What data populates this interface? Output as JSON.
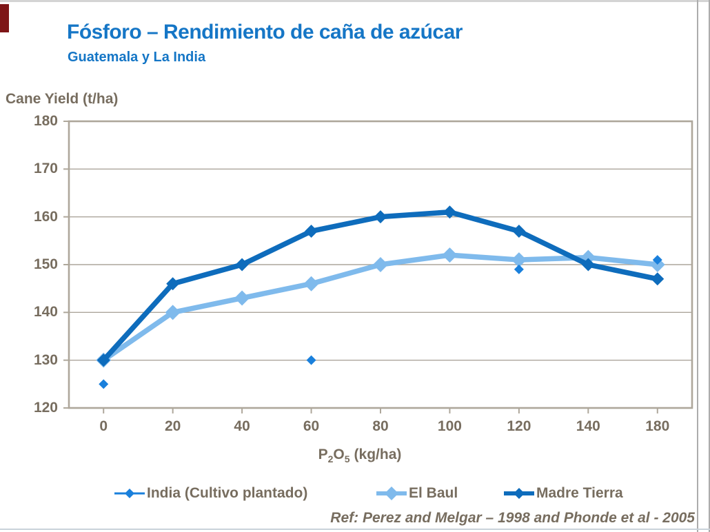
{
  "slide": {
    "title": "Fósforo – Rendimiento de caña de azúcar",
    "subtitle": "Guatemala y La India",
    "ref_text": "Ref:  Perez and Melgar – 1998 and Phonde et al - 2005"
  },
  "colors": {
    "title_blue": "#1576C6",
    "chart_text": "#776D5F",
    "plot_border": "#AEA79B",
    "grid": "#ABA59B",
    "accent_red": "#7E1517",
    "edge_top": "#D4D4D4",
    "edge_right": "#ACACAC",
    "edge_bottom": "#C9D2DA",
    "background": "#FFFFFF"
  },
  "chart_data": {
    "type": "line",
    "title": "",
    "ylabel": "Cane Yield (t/ha)",
    "xlabel": "P2O5 (kg/ha)",
    "xaxis_label": {
      "p": "P",
      "two": "2",
      "o": "O",
      "five": "5",
      "unit": "(kg/ha)"
    },
    "categories": [
      "0",
      "20",
      "40",
      "60",
      "80",
      "100",
      "120",
      "140",
      "180"
    ],
    "y_ticks": [
      180,
      170,
      160,
      150,
      140,
      130,
      120
    ],
    "ylim": [
      120,
      180
    ],
    "grid": "horizontal",
    "legend_position": "bottom",
    "series": [
      {
        "id": "india",
        "name": "India (Cultivo plantado)",
        "color": "#1A80DC",
        "line": false,
        "z": 2,
        "line_width": 3,
        "marker_radius": 7,
        "legend_marker_radius": 7,
        "values": [
          125,
          null,
          null,
          130,
          null,
          null,
          149,
          null,
          151
        ]
      },
      {
        "id": "el-baul",
        "name": "El Baul",
        "color": "#7FBAEC",
        "line": true,
        "z": 0,
        "line_width": 7.5,
        "marker_radius": 11,
        "legend_marker_radius": 10,
        "values": [
          130,
          140,
          143,
          146,
          150,
          152,
          151,
          151.5,
          150
        ]
      },
      {
        "id": "madre-tierra",
        "name": "Madre Tierra",
        "color": "#0E6CBC",
        "line": true,
        "z": 1,
        "line_width": 7.5,
        "marker_radius": 9.5,
        "legend_marker_radius": 8,
        "values": [
          130,
          146,
          150,
          157,
          160,
          161,
          157,
          150,
          147
        ]
      }
    ]
  }
}
